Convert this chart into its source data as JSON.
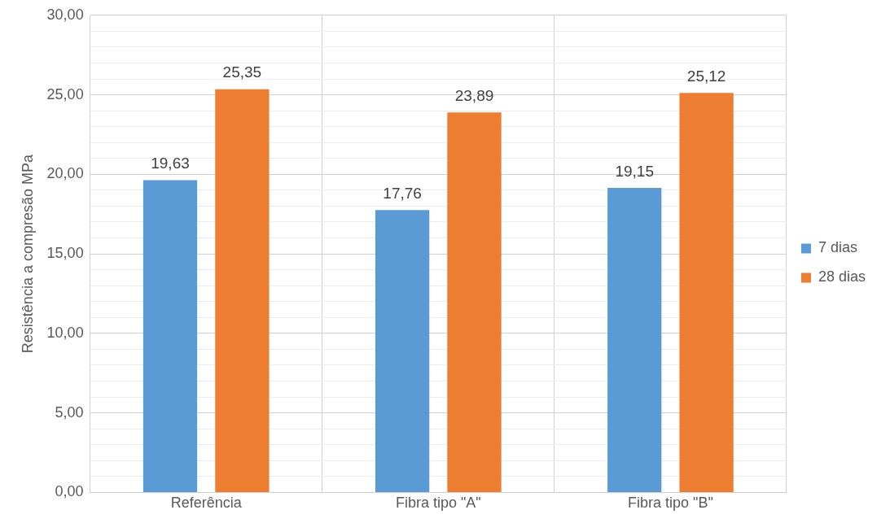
{
  "chart_data": {
    "type": "bar",
    "ylabel": "Resistência a compresão MPa",
    "categories": [
      "Referência",
      "Fibra tipo \"A\"",
      "Fibra tipo \"B\""
    ],
    "series": [
      {
        "name": "7 dias",
        "color": "#5b9bd5",
        "values": [
          19.63,
          17.76,
          19.15
        ],
        "value_labels": [
          "19,63",
          "17,76",
          "19,15"
        ]
      },
      {
        "name": "28 dias",
        "color": "#ed7d31",
        "values": [
          25.35,
          23.89,
          25.12
        ],
        "value_labels": [
          "25,35",
          "23,89",
          "25,12"
        ]
      }
    ],
    "ylim": [
      0,
      30
    ],
    "yticks": [
      {
        "value": 0,
        "label": "0,00"
      },
      {
        "value": 1,
        "label": null
      },
      {
        "value": 2,
        "label": null
      },
      {
        "value": 3,
        "label": null
      },
      {
        "value": 4,
        "label": null
      },
      {
        "value": 5,
        "label": "5,00"
      },
      {
        "value": 6,
        "label": null
      },
      {
        "value": 7,
        "label": null
      },
      {
        "value": 8,
        "label": null
      },
      {
        "value": 9,
        "label": null
      },
      {
        "value": 10,
        "label": "10,00"
      },
      {
        "value": 11,
        "label": null
      },
      {
        "value": 12,
        "label": null
      },
      {
        "value": 13,
        "label": null
      },
      {
        "value": 14,
        "label": null
      },
      {
        "value": 15,
        "label": "15,00"
      },
      {
        "value": 16,
        "label": null
      },
      {
        "value": 17,
        "label": null
      },
      {
        "value": 18,
        "label": null
      },
      {
        "value": 19,
        "label": null
      },
      {
        "value": 20,
        "label": "20,00"
      },
      {
        "value": 21,
        "label": null
      },
      {
        "value": 22,
        "label": null
      },
      {
        "value": 23,
        "label": null
      },
      {
        "value": 24,
        "label": null
      },
      {
        "value": 25,
        "label": "25,00"
      },
      {
        "value": 26,
        "label": null
      },
      {
        "value": 27,
        "label": null
      },
      {
        "value": 28,
        "label": null
      },
      {
        "value": 29,
        "label": null
      },
      {
        "value": 30,
        "label": "30,00"
      }
    ],
    "grid": true,
    "legend": "right"
  }
}
